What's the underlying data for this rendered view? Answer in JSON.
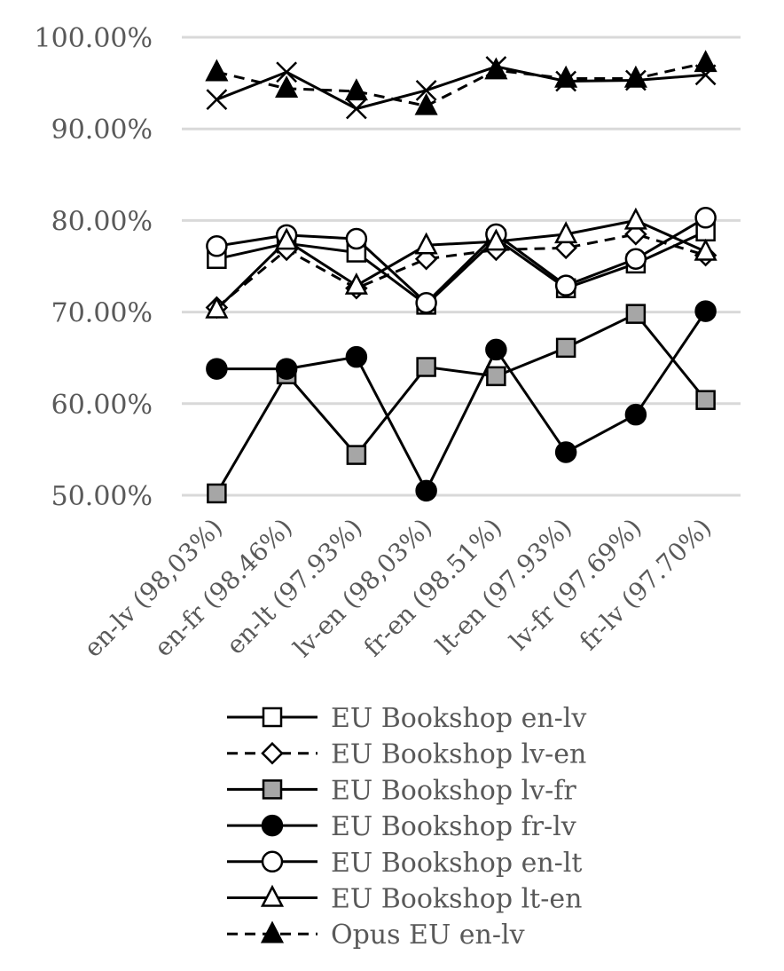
{
  "chart_data": {
    "type": "line",
    "categories": [
      "en-lv (98,03%)",
      "en-fr (98.46%)",
      "en-lt (97.93%)",
      "lv-en (98,03%)",
      "fr-en (98.51%)",
      "lt-en (97.93%)",
      "lv-fr (97.69%)",
      "fr-lv (97.70%)"
    ],
    "ylim": [
      50,
      100
    ],
    "yticks": [
      "50.00%",
      "60.00%",
      "70.00%",
      "80.00%",
      "90.00%",
      "100.00%"
    ],
    "grid": true,
    "legend_position": "bottom",
    "series": [
      {
        "name": "EU Bookshop en-lv",
        "values": [
          75.8,
          77.5,
          76.5,
          70.8,
          78.0,
          72.6,
          75.3,
          78.8
        ],
        "marker": "square",
        "fill": "#ffffff",
        "dash": false,
        "in_legend": true
      },
      {
        "name": "EU Bookshop lv-en",
        "values": [
          70.5,
          76.8,
          72.6,
          75.8,
          76.8,
          77.0,
          78.5,
          76.2
        ],
        "marker": "diamond",
        "fill": "#ffffff",
        "dash": true,
        "in_legend": true
      },
      {
        "name": "EU Bookshop lv-fr",
        "values": [
          50.2,
          63.2,
          54.4,
          64.0,
          63.0,
          66.1,
          69.8,
          60.4
        ],
        "marker": "square",
        "fill": "#a6a6a6",
        "dash": false,
        "in_legend": true
      },
      {
        "name": "EU Bookshop fr-lv",
        "values": [
          63.8,
          63.8,
          65.1,
          50.5,
          65.9,
          54.7,
          58.8,
          70.1
        ],
        "marker": "circle",
        "fill": "#000000",
        "dash": false,
        "in_legend": true
      },
      {
        "name": "EU Bookshop en-lt",
        "values": [
          77.2,
          78.4,
          78.0,
          71.0,
          78.5,
          72.9,
          75.8,
          80.3
        ],
        "marker": "circle",
        "fill": "#ffffff",
        "dash": false,
        "in_legend": true
      },
      {
        "name": "EU Bookshop lt-en",
        "values": [
          70.3,
          77.8,
          72.9,
          77.3,
          77.7,
          78.5,
          80.0,
          76.6
        ],
        "marker": "triangle",
        "fill": "#ffffff",
        "dash": false,
        "in_legend": true
      },
      {
        "name": "Opus EU en-lv",
        "values": [
          96.2,
          94.4,
          94.1,
          92.5,
          96.4,
          95.5,
          95.5,
          97.2
        ],
        "marker": "triangle",
        "fill": "#000000",
        "dash": true,
        "in_legend": true
      },
      {
        "name": "",
        "values": [
          93.2,
          96.2,
          92.2,
          94.2,
          96.8,
          95.2,
          95.3,
          95.9
        ],
        "marker": "x",
        "fill": "none",
        "dash": false,
        "in_legend": false
      }
    ]
  }
}
